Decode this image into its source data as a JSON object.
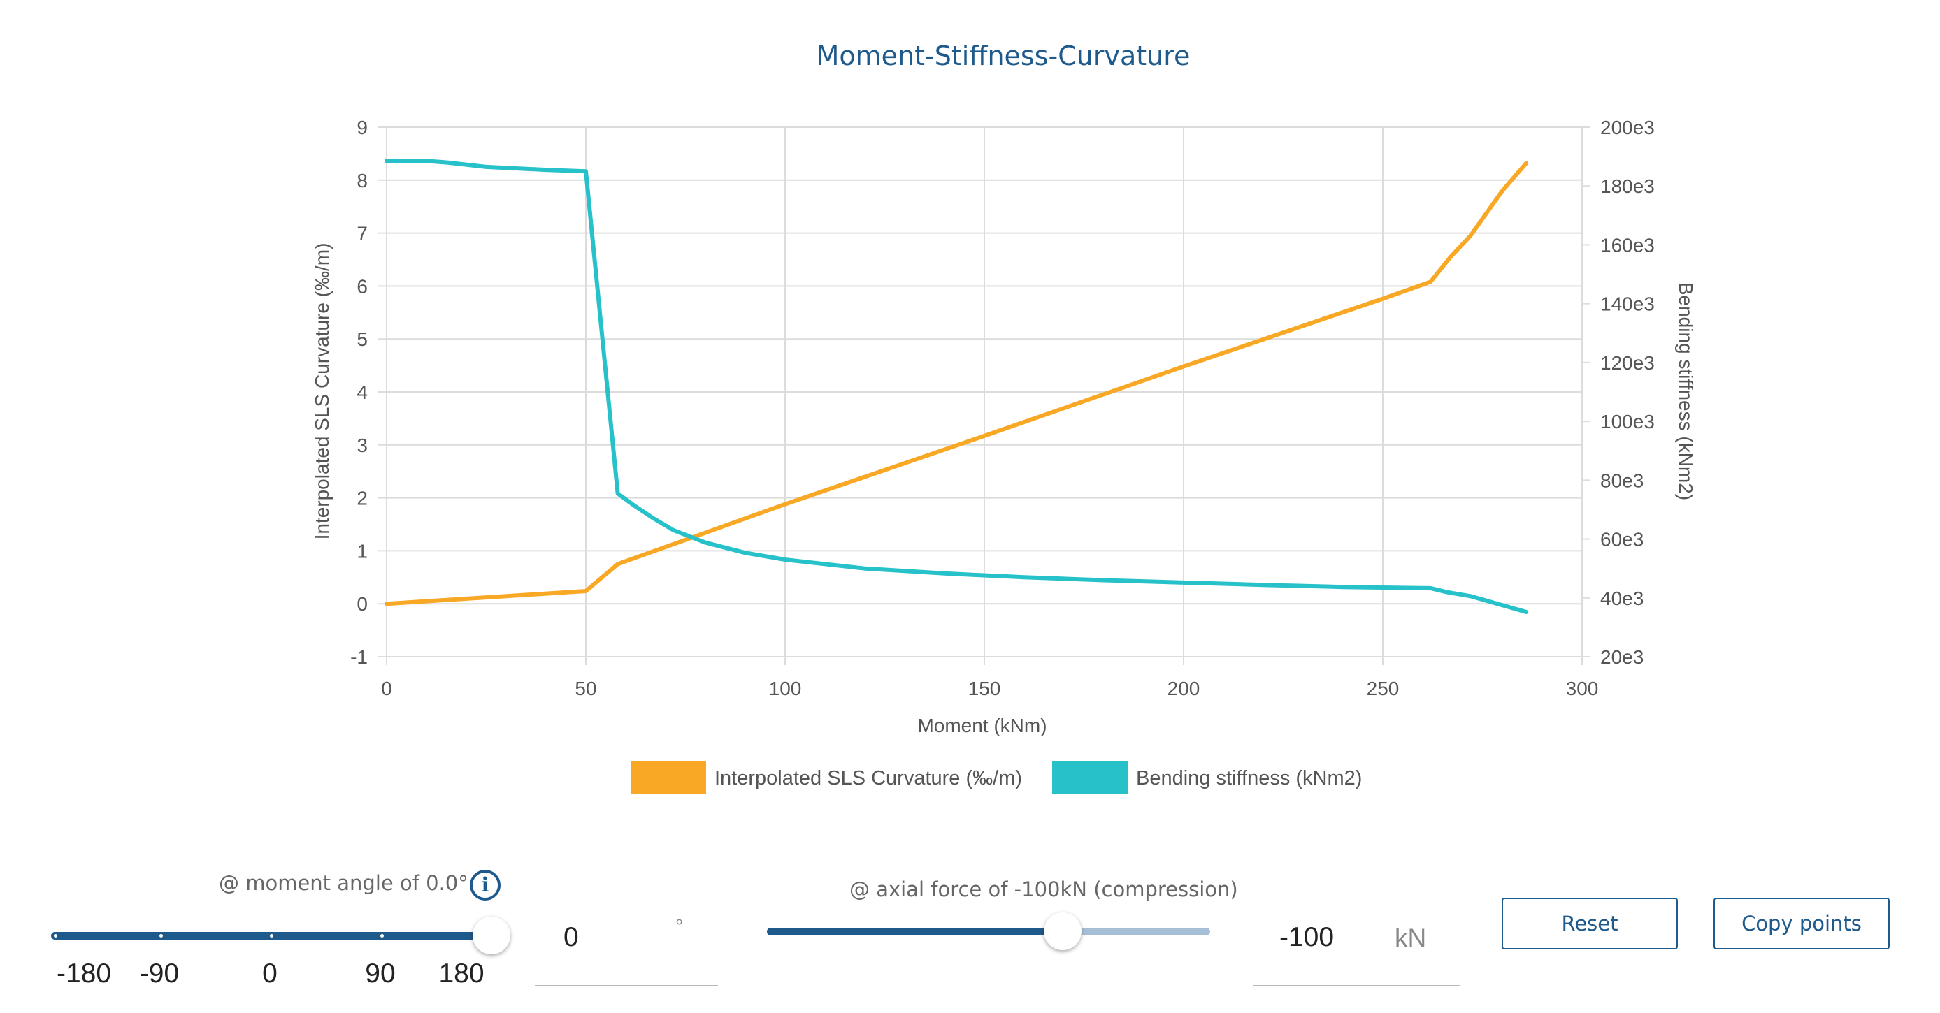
{
  "chart_data": {
    "type": "line",
    "title": "Moment-Stiffness-Curvature",
    "xlabel": "Moment (kNm)",
    "ylabel_left": "Interpolated SLS Curvature (‰/m)",
    "ylabel_right": "Bending stiffness (kNm2)",
    "xlim": [
      0,
      300
    ],
    "ylim_left": [
      -1,
      9
    ],
    "ylim_right": [
      20000,
      200000
    ],
    "x_ticks": [
      "0",
      "50",
      "100",
      "150",
      "200",
      "250",
      "300"
    ],
    "y_left_ticks": [
      "-1",
      "0",
      "1",
      "2",
      "3",
      "4",
      "5",
      "6",
      "7",
      "8",
      "9"
    ],
    "y_right_ticks": [
      "20e3",
      "40e3",
      "60e3",
      "80e3",
      "100e3",
      "120e3",
      "140e3",
      "160e3",
      "180e3",
      "200e3"
    ],
    "grid": true,
    "legend_position": "bottom-center",
    "series": [
      {
        "name": "Interpolated SLS Curvature (‰/m)",
        "color": "#f9a825",
        "axis": "left",
        "points": [
          [
            0,
            0.0
          ],
          [
            50,
            0.24
          ],
          [
            58,
            0.75
          ],
          [
            100,
            1.88
          ],
          [
            150,
            3.17
          ],
          [
            200,
            4.48
          ],
          [
            250,
            5.76
          ],
          [
            262,
            6.08
          ],
          [
            267,
            6.55
          ],
          [
            272,
            6.95
          ],
          [
            280,
            7.8
          ],
          [
            286,
            8.32
          ]
        ]
      },
      {
        "name": "Bending stiffness (kNm2)",
        "color": "#26c1c9",
        "axis": "right",
        "points": [
          [
            0,
            188500
          ],
          [
            10,
            188500
          ],
          [
            15,
            188000
          ],
          [
            25,
            186500
          ],
          [
            40,
            185500
          ],
          [
            50,
            185000
          ],
          [
            58,
            75500
          ],
          [
            62,
            71500
          ],
          [
            67,
            67000
          ],
          [
            72,
            63000
          ],
          [
            80,
            58800
          ],
          [
            90,
            55300
          ],
          [
            100,
            53000
          ],
          [
            120,
            50000
          ],
          [
            140,
            48300
          ],
          [
            160,
            47000
          ],
          [
            180,
            46000
          ],
          [
            200,
            45200
          ],
          [
            220,
            44400
          ],
          [
            240,
            43700
          ],
          [
            262,
            43300
          ],
          [
            266,
            42000
          ],
          [
            272,
            40600
          ],
          [
            280,
            37500
          ],
          [
            286,
            35200
          ]
        ]
      }
    ]
  },
  "controls": {
    "moment_angle": {
      "label": "@ moment angle of 0.0°",
      "marks": [
        "-180",
        "-90",
        "0",
        "90",
        "180"
      ],
      "value": 0,
      "min": -180,
      "max": 180,
      "field_value": "0",
      "unit": "°"
    },
    "axial_force": {
      "label": "@ axial force of -100kN (compression)",
      "fraction": 0.667,
      "field_value": "-100",
      "unit": "kN"
    },
    "reset_label": "Reset",
    "copy_label": "Copy points"
  },
  "colors": {
    "accent": "#1f5a8c",
    "slider_fill": "#1f5a8c",
    "slider_rest": "#a7bfd6"
  }
}
